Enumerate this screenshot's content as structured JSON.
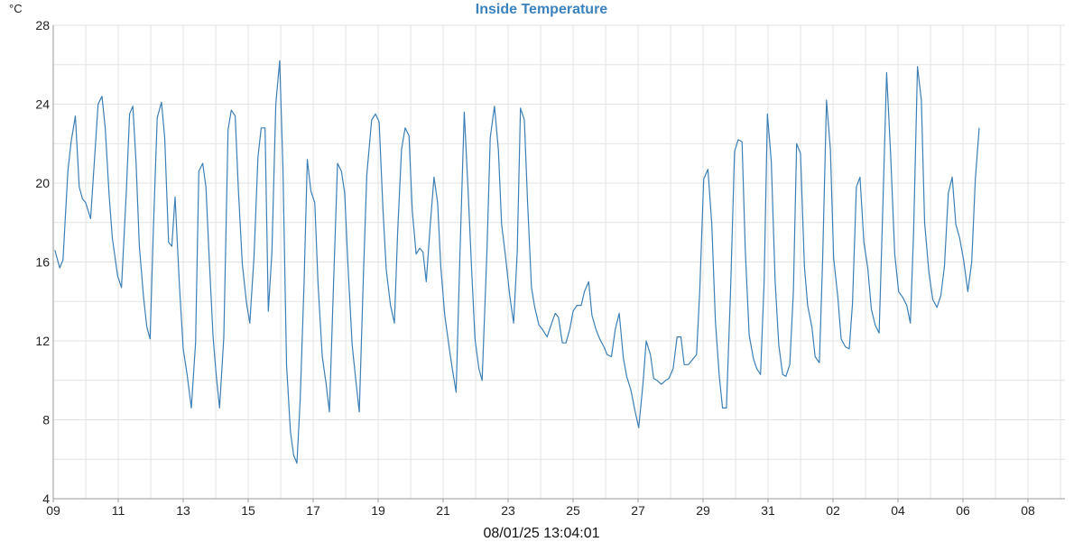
{
  "chart_data": {
    "type": "line",
    "title": "Inside Temperature",
    "y_unit_label": "°C",
    "footer_timestamp": "08/01/25 13:04:01",
    "ylim": [
      4,
      28
    ],
    "y_ticks": [
      "4",
      "8",
      "12",
      "16",
      "20",
      "24",
      "28"
    ],
    "x_range_days": [
      0,
      31.6
    ],
    "x_tick_labels": [
      "09",
      "11",
      "13",
      "15",
      "17",
      "19",
      "21",
      "23",
      "25",
      "27",
      "29",
      "31",
      "02",
      "04",
      "06",
      "08"
    ],
    "grid": true,
    "series": [
      {
        "color": "#3c7fb5",
        "points": [
          [
            0.05,
            16.6
          ],
          [
            0.2,
            15.7
          ],
          [
            0.3,
            16.1
          ],
          [
            0.45,
            20.6
          ],
          [
            0.55,
            22.1
          ],
          [
            0.68,
            23.4
          ],
          [
            0.8,
            19.8
          ],
          [
            0.9,
            19.2
          ],
          [
            1.0,
            19.0
          ],
          [
            1.15,
            18.2
          ],
          [
            1.38,
            24.0
          ],
          [
            1.5,
            24.4
          ],
          [
            1.6,
            22.8
          ],
          [
            1.72,
            19.4
          ],
          [
            1.82,
            17.2
          ],
          [
            1.98,
            15.3
          ],
          [
            2.1,
            14.7
          ],
          [
            2.25,
            19.6
          ],
          [
            2.35,
            23.5
          ],
          [
            2.45,
            23.9
          ],
          [
            2.55,
            21.0
          ],
          [
            2.65,
            16.8
          ],
          [
            2.78,
            14.2
          ],
          [
            2.88,
            12.7
          ],
          [
            2.98,
            12.1
          ],
          [
            3.08,
            17.6
          ],
          [
            3.2,
            23.3
          ],
          [
            3.33,
            24.1
          ],
          [
            3.43,
            22.3
          ],
          [
            3.55,
            17.0
          ],
          [
            3.65,
            16.8
          ],
          [
            3.75,
            19.3
          ],
          [
            3.88,
            14.9
          ],
          [
            4.0,
            11.6
          ],
          [
            4.12,
            10.3
          ],
          [
            4.25,
            8.6
          ],
          [
            4.38,
            11.9
          ],
          [
            4.48,
            20.6
          ],
          [
            4.6,
            21.0
          ],
          [
            4.7,
            19.8
          ],
          [
            4.8,
            16.2
          ],
          [
            4.92,
            12.2
          ],
          [
            5.02,
            10.2
          ],
          [
            5.12,
            8.6
          ],
          [
            5.25,
            12.2
          ],
          [
            5.38,
            22.7
          ],
          [
            5.48,
            23.7
          ],
          [
            5.6,
            23.4
          ],
          [
            5.7,
            19.6
          ],
          [
            5.82,
            15.9
          ],
          [
            5.95,
            13.9
          ],
          [
            6.05,
            12.9
          ],
          [
            6.18,
            16.3
          ],
          [
            6.3,
            21.3
          ],
          [
            6.4,
            22.8
          ],
          [
            6.52,
            22.8
          ],
          [
            6.62,
            13.5
          ],
          [
            6.73,
            16.5
          ],
          [
            6.85,
            24.0
          ],
          [
            6.97,
            26.2
          ],
          [
            7.07,
            20.8
          ],
          [
            7.18,
            10.8
          ],
          [
            7.3,
            7.4
          ],
          [
            7.4,
            6.2
          ],
          [
            7.5,
            5.8
          ],
          [
            7.6,
            9.0
          ],
          [
            7.72,
            14.9
          ],
          [
            7.82,
            21.2
          ],
          [
            7.93,
            19.6
          ],
          [
            8.05,
            19.0
          ],
          [
            8.15,
            14.9
          ],
          [
            8.28,
            11.2
          ],
          [
            8.4,
            9.8
          ],
          [
            8.5,
            8.4
          ],
          [
            8.62,
            14.5
          ],
          [
            8.75,
            21.0
          ],
          [
            8.87,
            20.6
          ],
          [
            8.97,
            19.5
          ],
          [
            9.08,
            15.5
          ],
          [
            9.2,
            11.8
          ],
          [
            9.32,
            9.9
          ],
          [
            9.42,
            8.4
          ],
          [
            9.55,
            15.5
          ],
          [
            9.65,
            20.4
          ],
          [
            9.8,
            23.2
          ],
          [
            9.92,
            23.5
          ],
          [
            10.03,
            23.1
          ],
          [
            10.15,
            18.6
          ],
          [
            10.25,
            15.6
          ],
          [
            10.38,
            13.8
          ],
          [
            10.5,
            12.9
          ],
          [
            10.6,
            17.5
          ],
          [
            10.72,
            21.7
          ],
          [
            10.83,
            22.8
          ],
          [
            10.95,
            22.4
          ],
          [
            11.05,
            18.6
          ],
          [
            11.17,
            16.4
          ],
          [
            11.28,
            16.7
          ],
          [
            11.38,
            16.5
          ],
          [
            11.48,
            15.0
          ],
          [
            11.6,
            17.8
          ],
          [
            11.72,
            20.3
          ],
          [
            11.83,
            19.0
          ],
          [
            11.93,
            15.7
          ],
          [
            12.05,
            13.3
          ],
          [
            12.2,
            11.5
          ],
          [
            12.3,
            10.4
          ],
          [
            12.4,
            9.4
          ],
          [
            12.52,
            16.5
          ],
          [
            12.65,
            23.6
          ],
          [
            12.77,
            19.6
          ],
          [
            12.88,
            15.5
          ],
          [
            12.98,
            12.1
          ],
          [
            13.1,
            10.6
          ],
          [
            13.2,
            10.0
          ],
          [
            13.35,
            16.6
          ],
          [
            13.45,
            22.3
          ],
          [
            13.58,
            23.9
          ],
          [
            13.7,
            21.7
          ],
          [
            13.8,
            17.9
          ],
          [
            13.92,
            16.3
          ],
          [
            14.05,
            14.3
          ],
          [
            14.17,
            12.9
          ],
          [
            14.28,
            16.5
          ],
          [
            14.38,
            23.8
          ],
          [
            14.5,
            23.2
          ],
          [
            14.6,
            19.0
          ],
          [
            14.72,
            14.7
          ],
          [
            14.82,
            13.7
          ],
          [
            14.95,
            12.8
          ],
          [
            15.05,
            12.6
          ],
          [
            15.2,
            12.2
          ],
          [
            15.3,
            12.7
          ],
          [
            15.45,
            13.4
          ],
          [
            15.55,
            13.2
          ],
          [
            15.67,
            11.9
          ],
          [
            15.78,
            11.9
          ],
          [
            15.9,
            12.6
          ],
          [
            16.0,
            13.5
          ],
          [
            16.12,
            13.8
          ],
          [
            16.25,
            13.8
          ],
          [
            16.35,
            14.5
          ],
          [
            16.48,
            15.0
          ],
          [
            16.58,
            13.3
          ],
          [
            16.7,
            12.6
          ],
          [
            16.82,
            12.1
          ],
          [
            16.95,
            11.7
          ],
          [
            17.05,
            11.3
          ],
          [
            17.18,
            11.2
          ],
          [
            17.3,
            12.6
          ],
          [
            17.42,
            13.4
          ],
          [
            17.55,
            11.1
          ],
          [
            17.65,
            10.2
          ],
          [
            17.78,
            9.5
          ],
          [
            17.9,
            8.5
          ],
          [
            18.02,
            7.6
          ],
          [
            18.15,
            9.8
          ],
          [
            18.25,
            12.0
          ],
          [
            18.38,
            11.3
          ],
          [
            18.48,
            10.1
          ],
          [
            18.58,
            10.0
          ],
          [
            18.72,
            9.8
          ],
          [
            18.85,
            10.0
          ],
          [
            18.95,
            10.1
          ],
          [
            19.08,
            10.6
          ],
          [
            19.2,
            12.2
          ],
          [
            19.32,
            12.2
          ],
          [
            19.42,
            10.8
          ],
          [
            19.55,
            10.8
          ],
          [
            19.65,
            11.0
          ],
          [
            19.8,
            11.3
          ],
          [
            19.9,
            14.6
          ],
          [
            20.02,
            20.2
          ],
          [
            20.15,
            20.7
          ],
          [
            20.27,
            17.9
          ],
          [
            20.38,
            13.0
          ],
          [
            20.5,
            10.2
          ],
          [
            20.6,
            8.6
          ],
          [
            20.72,
            8.6
          ],
          [
            20.85,
            14.7
          ],
          [
            20.97,
            21.6
          ],
          [
            21.08,
            22.2
          ],
          [
            21.2,
            22.1
          ],
          [
            21.3,
            16.6
          ],
          [
            21.42,
            12.3
          ],
          [
            21.55,
            11.1
          ],
          [
            21.65,
            10.6
          ],
          [
            21.77,
            10.3
          ],
          [
            21.88,
            15.0
          ],
          [
            21.98,
            23.5
          ],
          [
            22.1,
            21.1
          ],
          [
            22.22,
            15.0
          ],
          [
            22.33,
            11.8
          ],
          [
            22.45,
            10.3
          ],
          [
            22.55,
            10.2
          ],
          [
            22.67,
            10.8
          ],
          [
            22.78,
            14.5
          ],
          [
            22.88,
            22.0
          ],
          [
            23.0,
            21.5
          ],
          [
            23.12,
            15.8
          ],
          [
            23.22,
            13.8
          ],
          [
            23.35,
            12.7
          ],
          [
            23.45,
            11.2
          ],
          [
            23.58,
            10.9
          ],
          [
            23.68,
            16.1
          ],
          [
            23.8,
            24.2
          ],
          [
            23.92,
            21.7
          ],
          [
            24.02,
            16.2
          ],
          [
            24.15,
            14.2
          ],
          [
            24.25,
            12.1
          ],
          [
            24.38,
            11.7
          ],
          [
            24.5,
            11.6
          ],
          [
            24.6,
            13.9
          ],
          [
            24.72,
            19.8
          ],
          [
            24.83,
            20.3
          ],
          [
            24.95,
            17.0
          ],
          [
            25.07,
            15.7
          ],
          [
            25.18,
            13.6
          ],
          [
            25.3,
            12.8
          ],
          [
            25.42,
            12.4
          ],
          [
            25.53,
            18.6
          ],
          [
            25.65,
            25.6
          ],
          [
            25.77,
            21.6
          ],
          [
            25.9,
            16.4
          ],
          [
            26.02,
            14.5
          ],
          [
            26.15,
            14.2
          ],
          [
            26.27,
            13.8
          ],
          [
            26.38,
            12.9
          ],
          [
            26.48,
            17.5
          ],
          [
            26.6,
            25.9
          ],
          [
            26.72,
            24.2
          ],
          [
            26.82,
            18.0
          ],
          [
            26.95,
            15.5
          ],
          [
            27.07,
            14.1
          ],
          [
            27.2,
            13.7
          ],
          [
            27.32,
            14.3
          ],
          [
            27.43,
            15.8
          ],
          [
            27.55,
            19.5
          ],
          [
            27.67,
            20.3
          ],
          [
            27.78,
            17.9
          ],
          [
            27.9,
            17.2
          ],
          [
            28.02,
            16.1
          ],
          [
            28.15,
            14.5
          ],
          [
            28.27,
            16.0
          ],
          [
            28.38,
            20.2
          ],
          [
            28.5,
            22.8
          ]
        ]
      }
    ]
  }
}
